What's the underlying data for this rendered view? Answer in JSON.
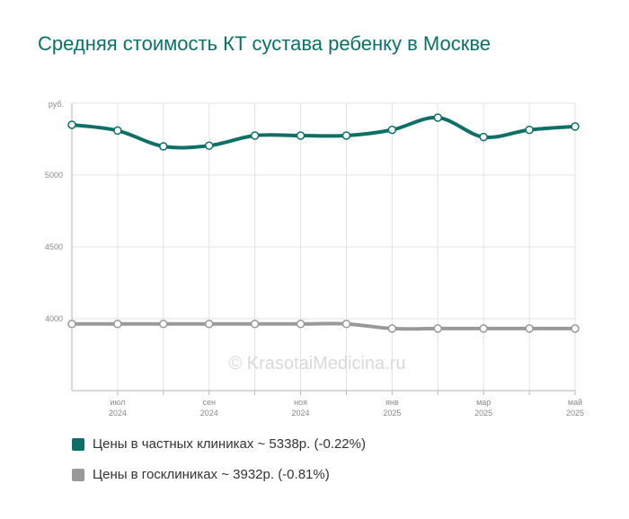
{
  "chart_data": {
    "type": "line",
    "title": "Средняя стоимость КТ сустава ребенку в Москве",
    "ylabel": "руб.",
    "ylim": [
      3500,
      5500
    ],
    "yticks": [
      4000,
      4500,
      5000
    ],
    "x": [
      "2024-06",
      "2024-07",
      "2024-08",
      "2024-09",
      "2024-10",
      "2024-11",
      "2024-12",
      "2025-01",
      "2025-02",
      "2025-03",
      "2025-04",
      "2025-05"
    ],
    "xtick_labels": [
      {
        "month": "июл",
        "year": "2024",
        "index": 1
      },
      {
        "month": "сен",
        "year": "2024",
        "index": 3
      },
      {
        "month": "ноя",
        "year": "2024",
        "index": 5
      },
      {
        "month": "янв",
        "year": "2025",
        "index": 7
      },
      {
        "month": "мар",
        "year": "2025",
        "index": 9
      },
      {
        "month": "май",
        "year": "2025",
        "index": 11
      }
    ],
    "series": [
      {
        "name": "Цены в частных клиниках ~ 5338р. (-0.22%)",
        "color": "#0e6f66",
        "values": [
          5350,
          5310,
          5200,
          5205,
          5275,
          5275,
          5275,
          5315,
          5400,
          5265,
          5315,
          5338
        ]
      },
      {
        "name": "Цены в госклиниках ~ 3932р. (-0.81%)",
        "color": "#999999",
        "values": [
          3964,
          3964,
          3964,
          3964,
          3964,
          3964,
          3964,
          3932,
          3932,
          3932,
          3932,
          3932
        ]
      }
    ],
    "watermark": "© KrasotaiMedicina.ru",
    "grid": true
  }
}
